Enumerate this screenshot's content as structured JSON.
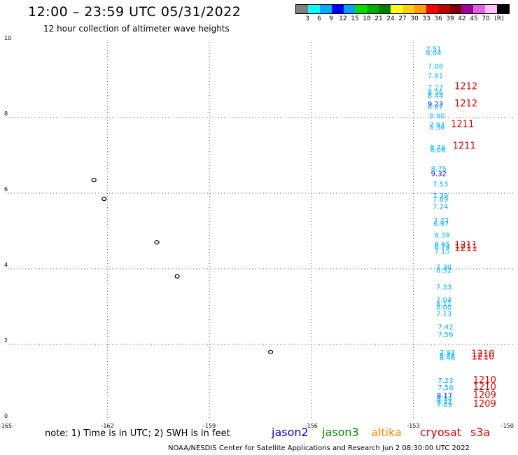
{
  "header": {
    "title": "12:00 – 23:59 UTC 05/31/2022",
    "subtitle": "12 hour collection of altimeter wave heights"
  },
  "colorbar": {
    "colors": [
      "#808080",
      "#00ffff",
      "#00b0ff",
      "#0000ff",
      "#00a0ff",
      "#00e000",
      "#00b000",
      "#008000",
      "#ffff00",
      "#ffd000",
      "#ffa000",
      "#ff0000",
      "#c00000",
      "#800000",
      "#a000a0",
      "#e060e0",
      "#ffc0ff",
      "#000000"
    ],
    "labels": [
      "3",
      "6",
      "9",
      "12",
      "15",
      "18",
      "21",
      "24",
      "27",
      "30",
      "33",
      "36",
      "39",
      "42",
      "45",
      "70",
      "(ft)"
    ]
  },
  "footer": {
    "note": "note:  1) Time is in UTC;  2) SWH is in feet",
    "satellites": [
      {
        "name": "jason2",
        "color": "#0000cc"
      },
      {
        "name": "jason3",
        "color": "#008800"
      },
      {
        "name": "altika",
        "color": "#ff8800"
      },
      {
        "name": "cryosat",
        "color": "#dd0000"
      },
      {
        "name": "s3a",
        "color": "#dd0000"
      }
    ],
    "credit": "NOAA/NESDIS Center for Satellite Applications and Research     Jun  2 08:30:00 UTC 2022"
  },
  "chart_data": {
    "type": "scatter",
    "title": "12:00 – 23:59 UTC 05/31/2022",
    "xlabel": "",
    "ylabel": "",
    "xlim": [
      -165,
      -150
    ],
    "ylim": [
      0,
      10
    ],
    "x_ticks": [
      "-165",
      "-162",
      "-159",
      "-156",
      "-153",
      "-150"
    ],
    "y_ticks": [
      "0",
      "2",
      "4",
      "6",
      "8",
      "10"
    ],
    "grid": true,
    "points": [
      {
        "x": -152.4,
        "y": 9.75,
        "label": "7.51",
        "color": "#00b0ff"
      },
      {
        "x": -152.4,
        "y": 9.65,
        "label": "8.04",
        "color": "#00b0ff"
      },
      {
        "x": -152.35,
        "y": 9.3,
        "label": "7.08",
        "color": "#00b0ff"
      },
      {
        "x": -152.35,
        "y": 9.05,
        "label": "7.81",
        "color": "#00b0ff"
      },
      {
        "x": -152.35,
        "y": 8.72,
        "label": "7.27",
        "color": "#00b0ff"
      },
      {
        "x": -152.35,
        "y": 8.6,
        "label": "8.36",
        "color": "#00b0ff"
      },
      {
        "x": -152.35,
        "y": 8.52,
        "label": "8.44",
        "color": "#00b0ff"
      },
      {
        "x": -152.35,
        "y": 8.3,
        "label": "9.23",
        "color": "#0000ff"
      },
      {
        "x": -152.35,
        "y": 8.22,
        "label": "8.07",
        "color": "#00b0ff"
      },
      {
        "x": -152.3,
        "y": 7.98,
        "label": "8.90",
        "color": "#00b0ff"
      },
      {
        "x": -152.3,
        "y": 7.75,
        "label": "7.93",
        "color": "#00b0ff"
      },
      {
        "x": -152.3,
        "y": 7.68,
        "label": "8.36",
        "color": "#00b0ff"
      },
      {
        "x": -152.28,
        "y": 7.15,
        "label": "8.74",
        "color": "#00b0ff"
      },
      {
        "x": -152.28,
        "y": 7.08,
        "label": "8.06",
        "color": "#00b0ff"
      },
      {
        "x": -152.25,
        "y": 6.58,
        "label": "8.75",
        "color": "#00b0ff"
      },
      {
        "x": -152.25,
        "y": 6.45,
        "label": "9.32",
        "color": "#0000ff"
      },
      {
        "x": -152.2,
        "y": 6.18,
        "label": "7.53",
        "color": "#00b0ff"
      },
      {
        "x": -152.2,
        "y": 5.87,
        "label": "7.39",
        "color": "#00b0ff"
      },
      {
        "x": -152.2,
        "y": 5.78,
        "label": "7.69",
        "color": "#00b0ff"
      },
      {
        "x": -152.2,
        "y": 5.58,
        "label": "7.24",
        "color": "#00b0ff"
      },
      {
        "x": -152.18,
        "y": 5.2,
        "label": "7.77",
        "color": "#00b0ff"
      },
      {
        "x": -152.18,
        "y": 5.13,
        "label": "6.97",
        "color": "#00b0ff"
      },
      {
        "x": -152.15,
        "y": 4.82,
        "label": "8.39",
        "color": "#00b0ff"
      },
      {
        "x": -152.15,
        "y": 4.58,
        "label": "8.65",
        "color": "#00b0ff"
      },
      {
        "x": -152.15,
        "y": 4.52,
        "label": "6.74",
        "color": "#00b0ff"
      },
      {
        "x": -152.15,
        "y": 4.4,
        "label": "7.15",
        "color": "#00b0ff"
      },
      {
        "x": -152.1,
        "y": 3.98,
        "label": "7.30",
        "color": "#00b0ff"
      },
      {
        "x": -152.1,
        "y": 3.9,
        "label": "8.32",
        "color": "#00b0ff"
      },
      {
        "x": -152.1,
        "y": 3.45,
        "label": "7.33",
        "color": "#00b0ff"
      },
      {
        "x": -152.1,
        "y": 3.12,
        "label": "7.04",
        "color": "#00b0ff"
      },
      {
        "x": -152.1,
        "y": 3.02,
        "label": "8.11",
        "color": "#00b0ff"
      },
      {
        "x": -152.1,
        "y": 2.92,
        "label": "8.00",
        "color": "#00b0ff"
      },
      {
        "x": -152.1,
        "y": 2.75,
        "label": "7.13",
        "color": "#00b0ff"
      },
      {
        "x": -152.05,
        "y": 2.4,
        "label": "7.42",
        "color": "#00b0ff"
      },
      {
        "x": -152.05,
        "y": 2.2,
        "label": "7.56",
        "color": "#00b0ff"
      },
      {
        "x": -152.0,
        "y": 1.72,
        "label": "7.93",
        "color": "#00b0ff"
      },
      {
        "x": -152.0,
        "y": 1.65,
        "label": "8.48",
        "color": "#00b0ff"
      },
      {
        "x": -152.0,
        "y": 1.58,
        "label": "8.46",
        "color": "#00b0ff"
      },
      {
        "x": -152.05,
        "y": 0.98,
        "label": "7.23",
        "color": "#00b0ff"
      },
      {
        "x": -152.05,
        "y": 0.8,
        "label": "7.56",
        "color": "#00b0ff"
      },
      {
        "x": -152.08,
        "y": 0.58,
        "label": "8.17",
        "color": "#0000ff"
      },
      {
        "x": -152.08,
        "y": 0.5,
        "label": "8.34",
        "color": "#00b0ff"
      },
      {
        "x": -152.08,
        "y": 0.42,
        "label": "8.71",
        "color": "#00b0ff"
      },
      {
        "x": -152.08,
        "y": 0.35,
        "label": "7.89",
        "color": "#00b0ff"
      }
    ],
    "pass_labels": [
      {
        "x": -151.45,
        "y": 8.75,
        "label": "1212"
      },
      {
        "x": -151.45,
        "y": 8.3,
        "label": "1212"
      },
      {
        "x": -151.55,
        "y": 7.75,
        "label": "1211"
      },
      {
        "x": -151.5,
        "y": 7.18,
        "label": "1211"
      },
      {
        "x": -151.45,
        "y": 4.55,
        "label": "1211"
      },
      {
        "x": -151.45,
        "y": 4.47,
        "label": "1211"
      },
      {
        "x": -150.95,
        "y": 1.68,
        "label": "1210"
      },
      {
        "x": -150.95,
        "y": 1.6,
        "label": "1210"
      },
      {
        "x": -150.9,
        "y": 0.98,
        "label": "1210"
      },
      {
        "x": -150.9,
        "y": 0.8,
        "label": "1210"
      },
      {
        "x": -150.9,
        "y": 0.58,
        "label": "1209"
      },
      {
        "x": -150.9,
        "y": 0.35,
        "label": "1209"
      }
    ],
    "islands": [
      {
        "x": -162.4,
        "y": 6.35,
        "name": ""
      },
      {
        "x": -162.1,
        "y": 5.85,
        "name": ""
      },
      {
        "x": -160.55,
        "y": 4.7,
        "name": ""
      },
      {
        "x": -159.95,
        "y": 3.8,
        "name": ""
      },
      {
        "x": -157.2,
        "y": 1.8,
        "name": ""
      }
    ]
  }
}
